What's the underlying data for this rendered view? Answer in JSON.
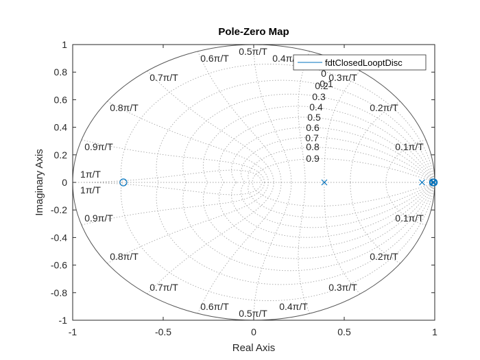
{
  "chart_data": {
    "type": "scatter",
    "title": "Pole-Zero Map",
    "xlabel": "Real Axis",
    "ylabel": "Imaginary Axis",
    "xlim": [
      -1,
      1
    ],
    "ylim": [
      -1,
      1
    ],
    "xticks": [
      -1,
      -0.5,
      0,
      0.5,
      1
    ],
    "xtick_labels": [
      "-1",
      "-0.5",
      "0",
      "0.5",
      "1"
    ],
    "yticks": [
      1,
      0.8,
      0.6,
      0.4,
      0.2,
      0,
      -0.2,
      -0.4,
      -0.6,
      -0.8,
      -1
    ],
    "ytick_labels": [
      "1",
      "0.8",
      "0.6",
      "0.4",
      "0.2",
      "0",
      "-0.2",
      "-0.4",
      "-0.6",
      "-0.8",
      "-1"
    ],
    "grid": "zgrid (damping ratio and natural frequency curves)",
    "legend": {
      "location": "top-right",
      "entries": [
        "fdtClosedLooptDisc"
      ]
    },
    "series": [
      {
        "name": "fdtClosedLooptDisc",
        "color": "#0072bd",
        "poles": [
          [
            0.39,
            0
          ],
          [
            0.93,
            0
          ],
          [
            0.99,
            0
          ],
          [
            0.995,
            0
          ]
        ],
        "zeros": [
          [
            -0.72,
            0
          ],
          [
            0.99,
            0
          ],
          [
            0.995,
            0
          ]
        ]
      }
    ],
    "grid_labels": {
      "damping": [
        "0.1",
        "0.2",
        "0.3",
        "0.4",
        "0.5",
        "0.6",
        "0.7",
        "0.8",
        "0.9"
      ],
      "damping_top": "0",
      "freq_upper": [
        "0.1π/T",
        "0.2π/T",
        "0.3π/T",
        "0.4π/T",
        "0.5π/T",
        "0.6π/T",
        "0.7π/T",
        "0.8π/T",
        "0.9π/T",
        "1π/T"
      ],
      "freq_lower": [
        "0.1π/T",
        "0.2π/T",
        "0.3π/T",
        "0.4π/T",
        "0.5π/T",
        "0.6π/T",
        "0.7π/T",
        "0.8π/T",
        "0.9π/T",
        "1π/T"
      ]
    }
  }
}
